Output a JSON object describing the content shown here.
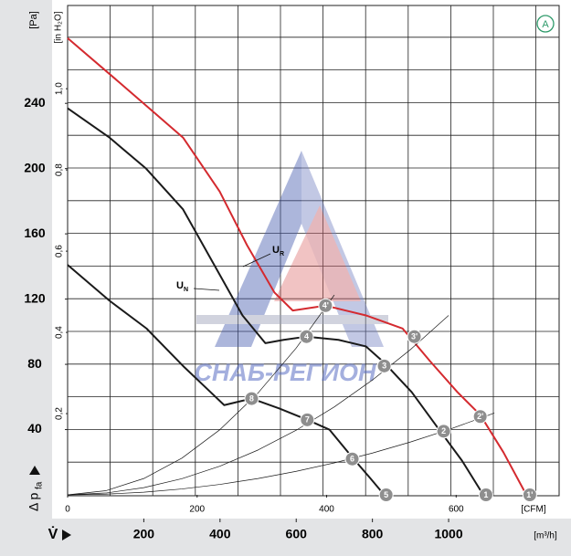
{
  "chart_data": {
    "type": "line",
    "corner_badge": "A",
    "y_unit": "[Pa]",
    "y2_unit": "[in H₂O]",
    "x_unit": "[m³/h]",
    "x2_unit": "[CFM]",
    "y_label": {
      "main": "Δ p",
      "sub": "fa"
    },
    "x_label": "V̇",
    "watermark": "СНАБ-РЕГИОН",
    "xlim": [
      0,
      1290
    ],
    "xticks": [
      200,
      400,
      600,
      800,
      1000
    ],
    "x2lim": [
      0,
      759
    ],
    "x2ticks": [
      0,
      200,
      400,
      600
    ],
    "ylim": [
      0,
      300
    ],
    "yticks": [
      40,
      80,
      120,
      160,
      200,
      240
    ],
    "y2lim": [
      0,
      1.205
    ],
    "y2ticks": [
      {
        "value": 0.2,
        "label": "0,2"
      },
      {
        "value": 0.4,
        "label": "0,4"
      },
      {
        "value": 0.6,
        "label": "0,6"
      },
      {
        "value": 0.8,
        "label": "0,8"
      },
      {
        "value": 1,
        "label": "1,0"
      }
    ],
    "series": [
      {
        "label": {
          "main": "U",
          "sub": "R"
        },
        "color": "#d42a2f",
        "width": 2,
        "x": [
          0,
          135,
          303,
          399,
          471,
          543,
          591,
          677,
          783,
          879,
          951,
          1023,
          1083,
          1144,
          1204
        ],
        "values": [
          280,
          253,
          219,
          186,
          153,
          124,
          113,
          116,
          110,
          102,
          82,
          63,
          49,
          26,
          0
        ]
      },
      {
        "label": {
          "main": "U",
          "sub": "N"
        },
        "color": "#1a1a1a",
        "width": 2,
        "x": [
          0,
          110,
          206,
          303,
          399,
          459,
          519,
          567,
          627,
          711,
          783,
          831,
          903,
          975,
          1035,
          1091
        ],
        "values": [
          237,
          219,
          200,
          175,
          135,
          110,
          93,
          95,
          97,
          95,
          91,
          81,
          63,
          40,
          21,
          0
        ]
      },
      {
        "color": "#1a1a1a",
        "width": 2,
        "x": [
          0,
          110,
          207,
          303,
          375,
          411,
          447,
          483,
          555,
          629,
          687,
          747,
          795,
          831
        ],
        "values": [
          141,
          119,
          102,
          79,
          63,
          55,
          57,
          59,
          53,
          46,
          40,
          23,
          10,
          0
        ]
      },
      {
        "color": "#1a1a1a",
        "width": 0.7,
        "x": [
          0,
          100,
          200,
          300,
          400,
          500,
          600,
          700
        ],
        "values": [
          0,
          2.5,
          10,
          22.5,
          40,
          62.5,
          90,
          122.5
        ]
      },
      {
        "color": "#1a1a1a",
        "width": 0.7,
        "x": [
          0,
          100,
          200,
          300,
          400,
          500,
          600,
          700,
          800,
          900,
          1000
        ],
        "values": [
          0,
          1.1,
          4.4,
          9.9,
          17.6,
          27.5,
          39.6,
          53.9,
          70.4,
          89.1,
          110
        ]
      },
      {
        "color": "#1a1a1a",
        "width": 0.7,
        "x": [
          0,
          100,
          200,
          300,
          400,
          500,
          600,
          700,
          800,
          900,
          1000,
          1100,
          1120
        ],
        "values": [
          0,
          0.4,
          1.6,
          3.6,
          6.4,
          10,
          14.4,
          19.6,
          25.6,
          32.4,
          40,
          48.4,
          50.2
        ]
      }
    ],
    "markers": [
      {
        "label": "1",
        "x": 1098,
        "y": 0
      },
      {
        "label": "2",
        "x": 987,
        "y": 39
      },
      {
        "label": "3",
        "x": 831,
        "y": 79
      },
      {
        "label": "4",
        "x": 627,
        "y": 97
      },
      {
        "label": "5",
        "x": 836,
        "y": 0
      },
      {
        "label": "6",
        "x": 747,
        "y": 22
      },
      {
        "label": "7",
        "x": 629,
        "y": 46
      },
      {
        "label": "8",
        "x": 483,
        "y": 59
      },
      {
        "label": "1'",
        "x": 1213,
        "y": 0
      },
      {
        "label": "2'",
        "x": 1083,
        "y": 48
      },
      {
        "label": "3'",
        "x": 910,
        "y": 97
      },
      {
        "label": "4'",
        "x": 677,
        "y": 116
      }
    ]
  }
}
